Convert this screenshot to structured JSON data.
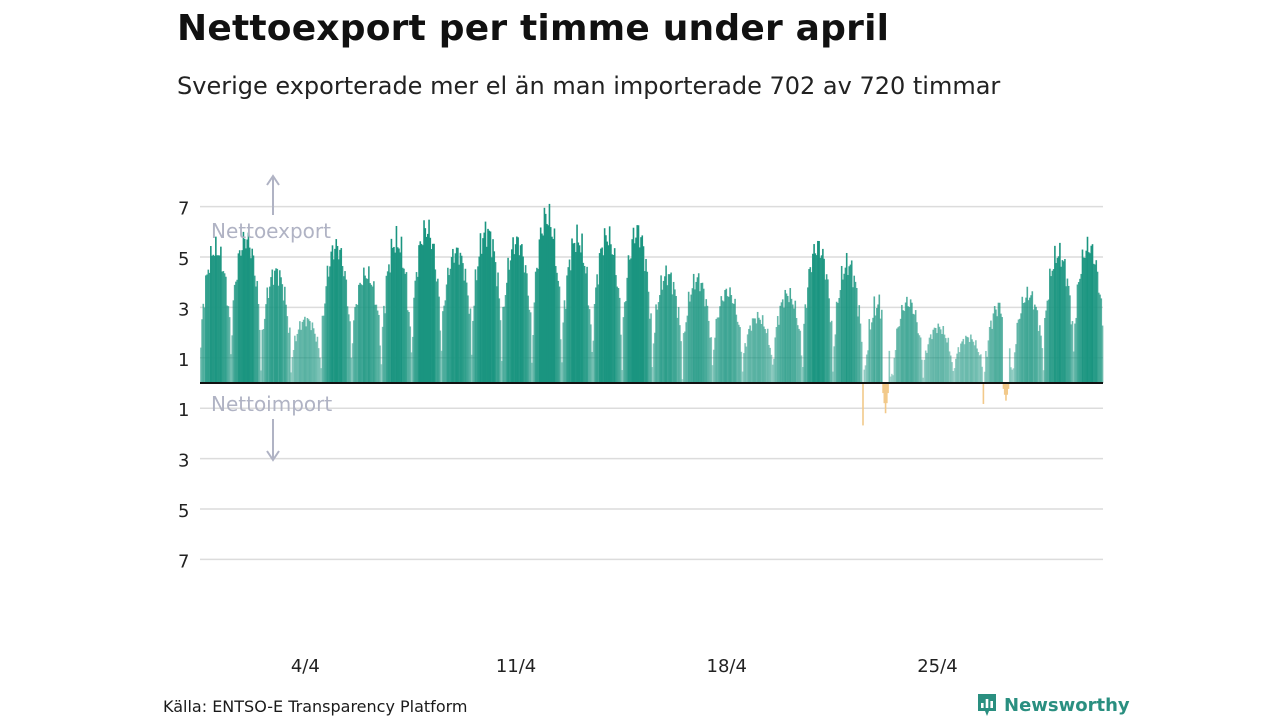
{
  "header": {
    "title": "Nettoexport per timme under april",
    "subtitle": "Sverige exporterade mer el än man importerade 702 av 720 timmar"
  },
  "chart_data": {
    "type": "bar",
    "title": "Nettoexport per timme under april",
    "subtitle": "Sverige exporterade mer el än man importerade 702 av 720 timmar",
    "xlabel": "",
    "ylabel": "",
    "ylim": [
      -7.5,
      7.5
    ],
    "y_ticks": [
      7,
      5,
      3,
      1,
      -1,
      -3,
      -5,
      -7
    ],
    "y_tick_labels": [
      "7",
      "5",
      "3",
      "1",
      "1",
      "3",
      "5",
      "7"
    ],
    "x_ticks": [
      {
        "day": 4,
        "label": "4/4"
      },
      {
        "day": 11,
        "label": "11/4"
      },
      {
        "day": 18,
        "label": "18/4"
      },
      {
        "day": 25,
        "label": "25/4"
      }
    ],
    "annotations": {
      "export_label": "Nettoexport",
      "import_label": "Nettoimport"
    },
    "hours_total": 720,
    "hours_export": 702,
    "daily_profile": {
      "day": [
        1,
        2,
        3,
        4,
        5,
        6,
        7,
        8,
        9,
        10,
        11,
        12,
        13,
        14,
        15,
        16,
        17,
        18,
        19,
        20,
        21,
        22,
        23,
        24,
        25,
        26,
        27,
        28,
        29,
        30
      ],
      "max_net_export": [
        5.3,
        5.7,
        4.4,
        2.5,
        5.4,
        4.3,
        5.6,
        6.1,
        5.2,
        6.0,
        5.6,
        6.6,
        5.7,
        5.8,
        6.0,
        4.3,
        4.1,
        3.6,
        2.6,
        3.5,
        5.4,
        4.7,
        3.1,
        3.2,
        2.2,
        1.8,
        3.0,
        3.5,
        5.1,
        5.4
      ],
      "min_net": [
        1.2,
        1.0,
        0.6,
        0.5,
        0.8,
        0.9,
        0.6,
        0.9,
        1.4,
        1.2,
        1.2,
        0.6,
        0.8,
        0.8,
        0.7,
        0.6,
        0.5,
        0.6,
        0.5,
        0.4,
        0.8,
        0.3,
        -1.2,
        0.2,
        0.3,
        0.3,
        -0.7,
        0.4,
        1.0,
        1.1
      ]
    },
    "series": [
      {
        "name": "Nettoexport",
        "color": "#1a9580"
      },
      {
        "name": "Nettoimport",
        "color": "#f2c98a"
      }
    ]
  },
  "footer": {
    "source": "Källa: ENTSO-E Transparency Platform",
    "brand": "Newsworthy"
  },
  "colors": {
    "export": "#1a9580",
    "import": "#f2c98a",
    "grid": "#dcdcdc",
    "zero_line": "#111111",
    "annotation": "#b0b3c4",
    "brand": "#2a8f80"
  }
}
